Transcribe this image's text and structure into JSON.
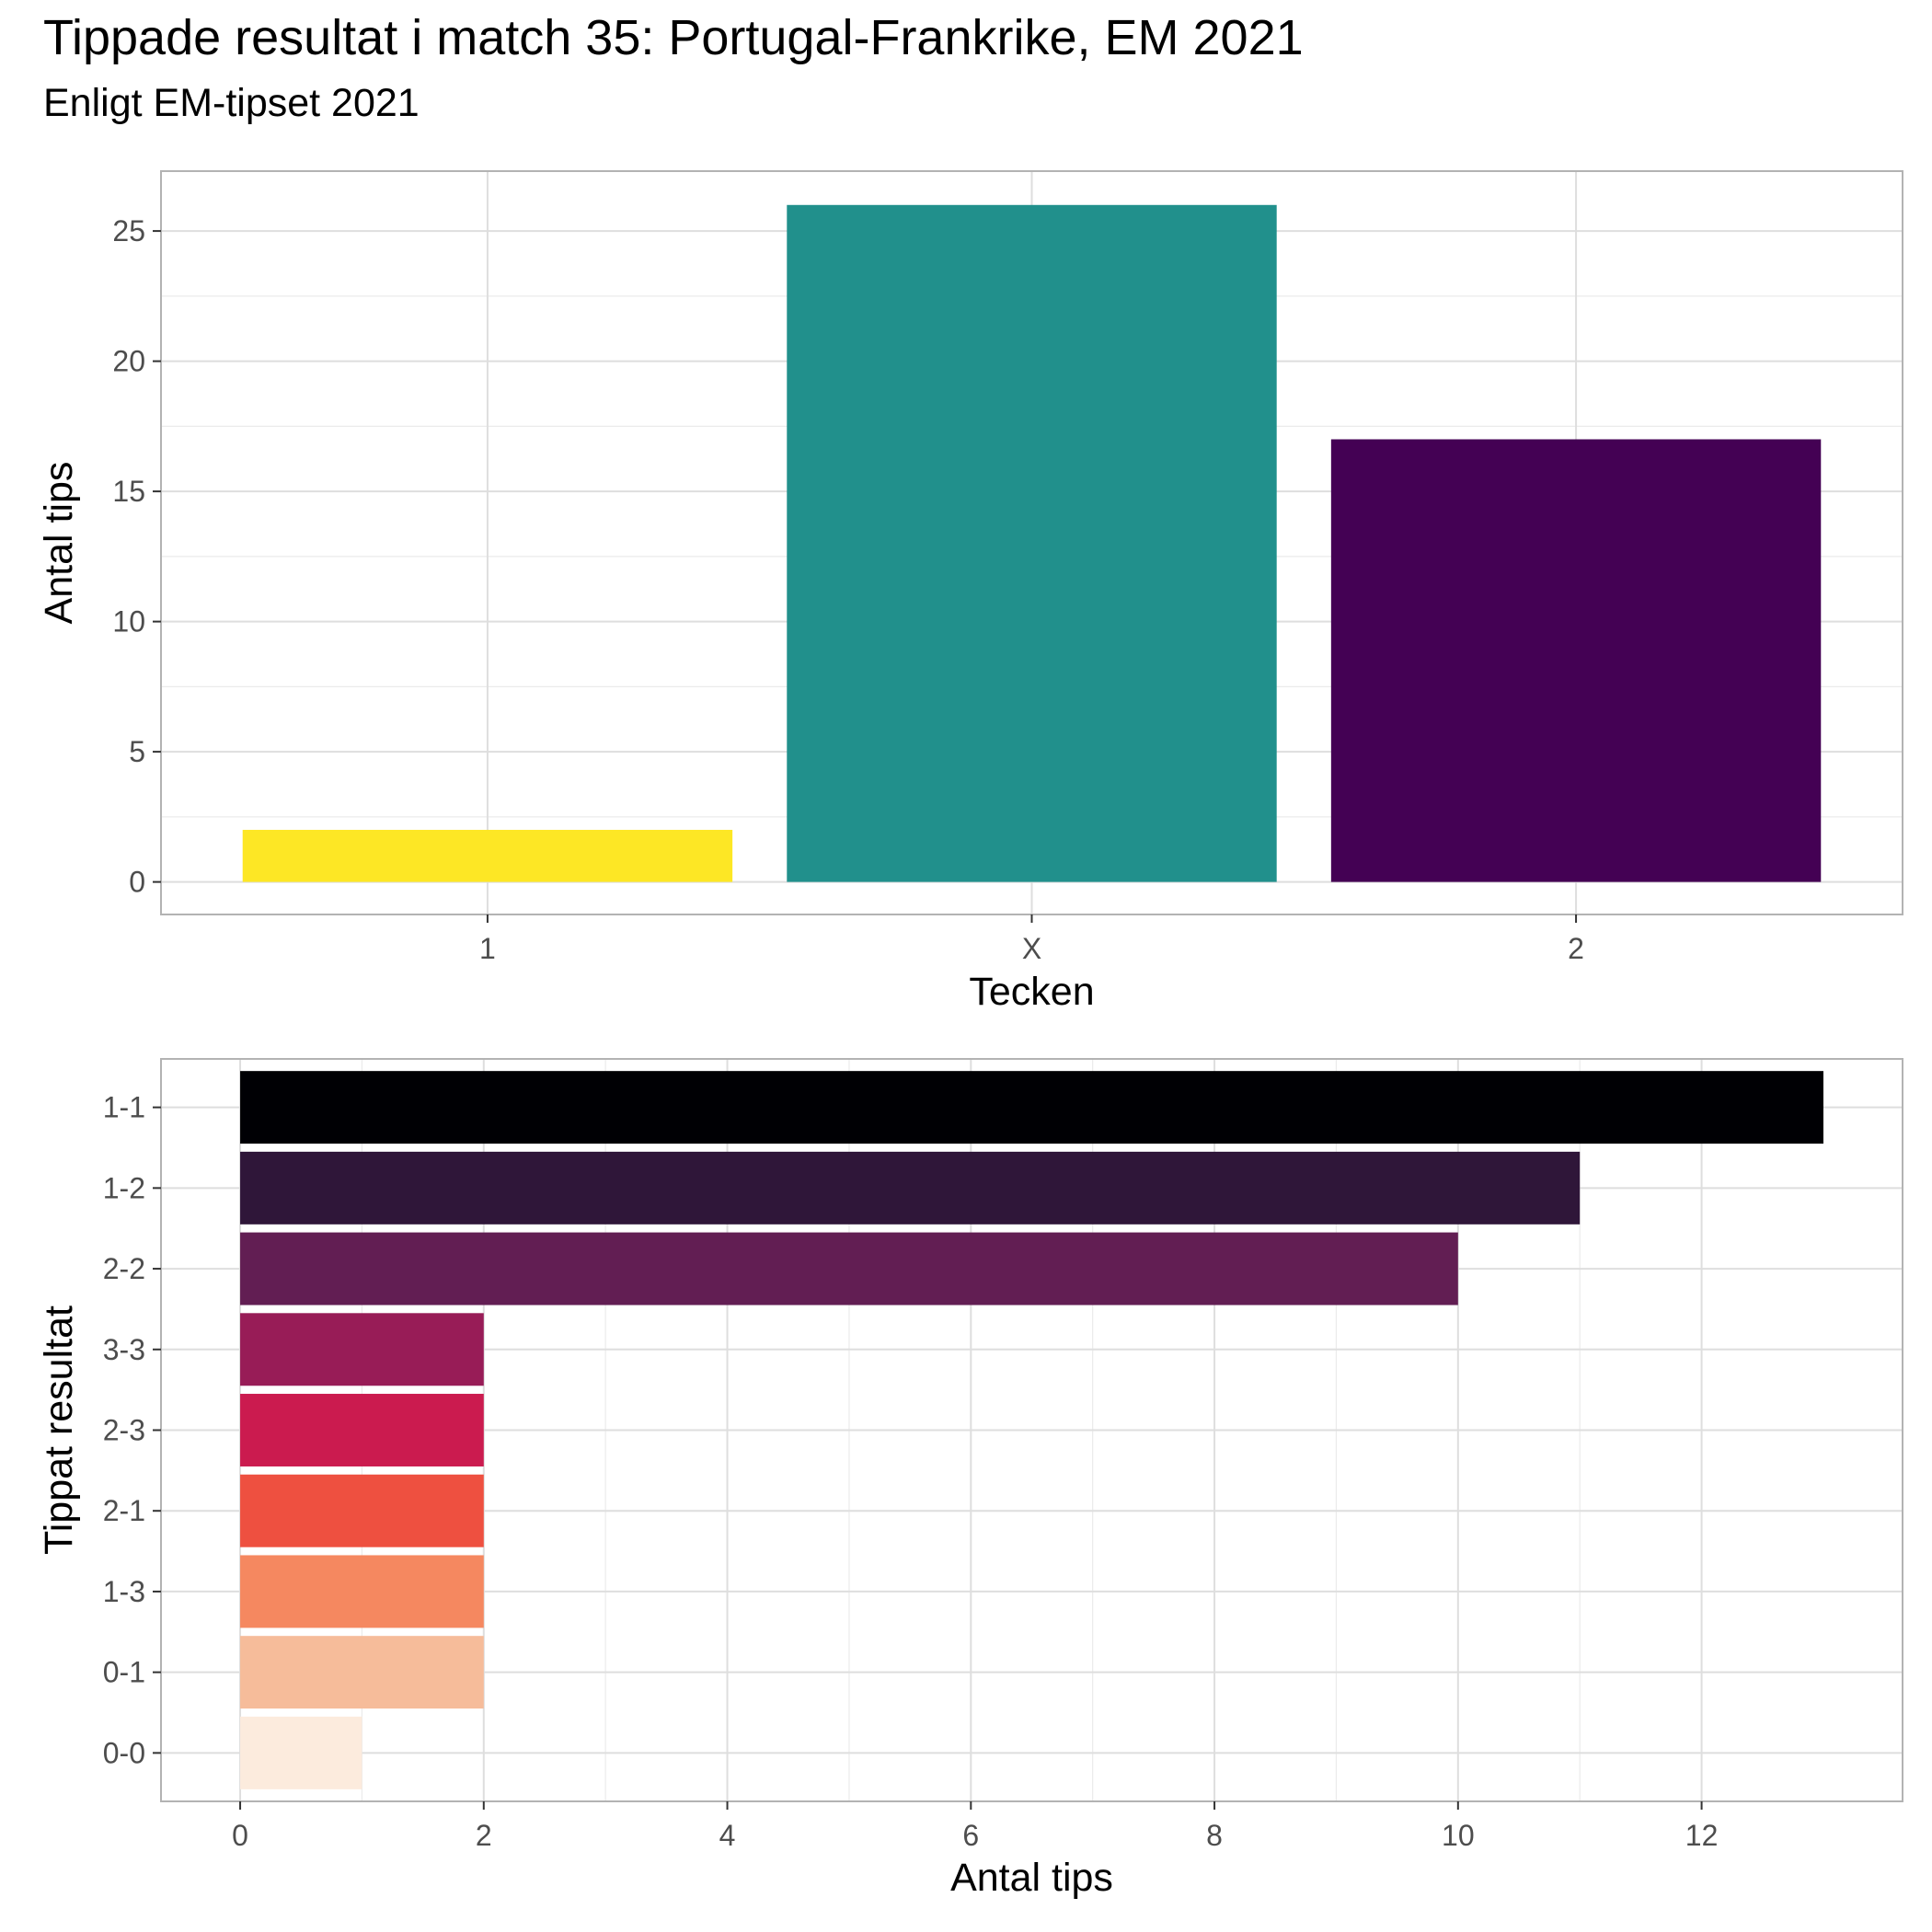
{
  "title": "Tippade resultat i match 35: Portugal-Frankrike, EM 2021",
  "subtitle": "Enligt EM-tipset 2021",
  "chart_data": [
    {
      "type": "bar",
      "orientation": "vertical",
      "categories": [
        "1",
        "X",
        "2"
      ],
      "values": [
        2,
        26,
        17
      ],
      "colors": [
        "#FDE725",
        "#21908C",
        "#440154"
      ],
      "xlabel": "Tecken",
      "ylabel": "Antal tips",
      "ylim": [
        -1.25,
        27.3
      ],
      "yticks": [
        0,
        5,
        10,
        15,
        20,
        25
      ],
      "grid": true,
      "legend": "none"
    },
    {
      "type": "bar",
      "orientation": "horizontal",
      "categories": [
        "1-1",
        "1-2",
        "2-2",
        "3-3",
        "2-3",
        "2-1",
        "1-3",
        "0-1",
        "0-0"
      ],
      "values": [
        13,
        11,
        10,
        2,
        2,
        2,
        2,
        2,
        1
      ],
      "colors": [
        "#000004",
        "#2F1639",
        "#621E53",
        "#981C57",
        "#CB1B4F",
        "#EE5040",
        "#F58860",
        "#F6BC9A",
        "#FCEBDD"
      ],
      "xlabel": "Antal tips",
      "ylabel": "Tippat resultat",
      "xlim": [
        -0.65,
        13.65
      ],
      "xticks": [
        0,
        2,
        4,
        6,
        8,
        10,
        12
      ],
      "grid": true,
      "legend": "none"
    }
  ]
}
